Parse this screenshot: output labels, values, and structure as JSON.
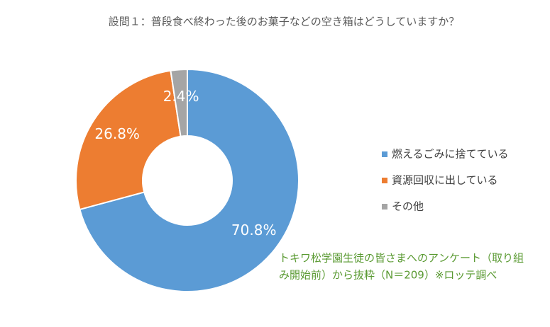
{
  "chart_data": {
    "type": "donut",
    "title": "設問１：普段食べ終わった後のお菓子などの空き箱はどうしていますか？",
    "categories": [
      "燃えるごみに捨てている",
      "資源回収に出している",
      "その他"
    ],
    "values": [
      70.8,
      26.8,
      2.4
    ],
    "value_labels": [
      "70.8%",
      "26.8%",
      "2.4%"
    ],
    "colors": [
      "#5b9bd5",
      "#ed7d31",
      "#a5a5a5"
    ],
    "legend": "right",
    "annotation": [
      "トキワ松学園生徒の皆さまへのアンケート（取り組",
      "み開始前）から抜粋（N＝209）※ロッテ調べ"
    ]
  }
}
